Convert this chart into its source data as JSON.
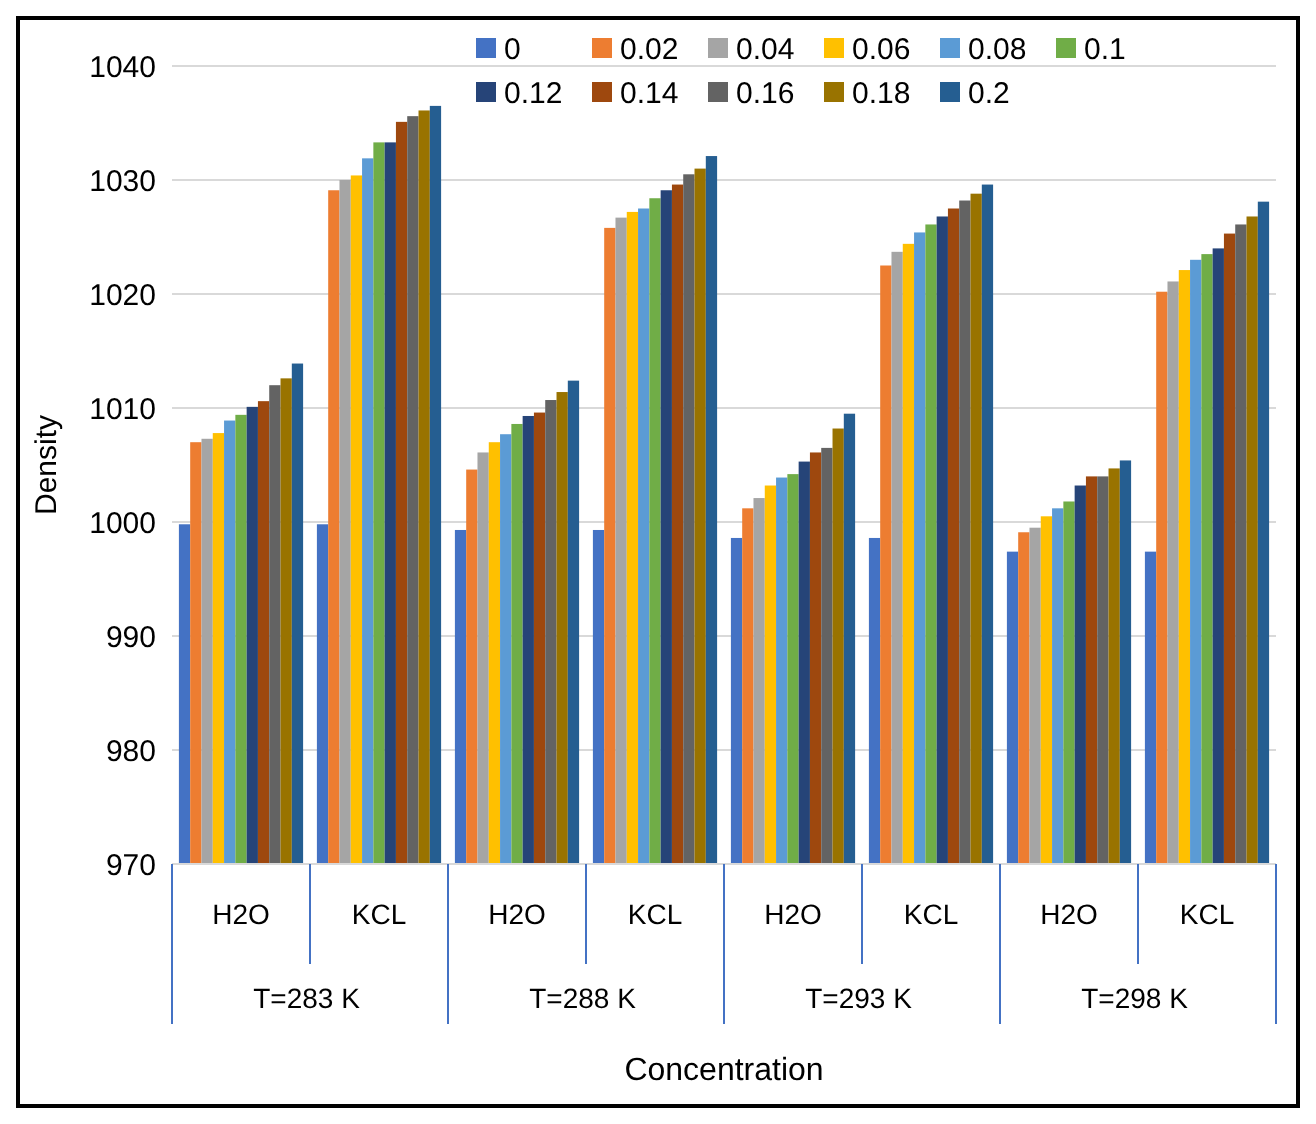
{
  "chart_data": {
    "type": "bar",
    "xlabel": "Concentration",
    "ylabel": "Density",
    "categories": [
      "H2O",
      "KCL",
      "H2O",
      "KCL",
      "H2O",
      "KCL",
      "H2O",
      "KCL"
    ],
    "annotations": [
      "T=283 K",
      "T=288 K",
      "T=293 K",
      "T=298 K"
    ],
    "ylim": [
      970,
      1040
    ],
    "yticks": [
      970,
      980,
      990,
      1000,
      1010,
      1020,
      1030,
      1040
    ],
    "grid": "y",
    "legend": "top",
    "series": [
      {
        "name": "0",
        "color": "#4472c4",
        "values": [
          999.8,
          999.8,
          999.3,
          999.3,
          998.6,
          998.6,
          997.4,
          997.4
        ]
      },
      {
        "name": "0.02",
        "color": "#ed7d31",
        "values": [
          1007.0,
          1029.1,
          1004.6,
          1025.8,
          1001.2,
          1022.5,
          999.1,
          1020.2
        ]
      },
      {
        "name": "0.04",
        "color": "#a5a5a5",
        "values": [
          1007.3,
          1030.0,
          1006.1,
          1026.7,
          1002.1,
          1023.7,
          999.5,
          1021.1
        ]
      },
      {
        "name": "0.06",
        "color": "#ffc000",
        "values": [
          1007.8,
          1030.4,
          1007.0,
          1027.2,
          1003.2,
          1024.4,
          1000.5,
          1022.1
        ]
      },
      {
        "name": "0.08",
        "color": "#5b9bd5",
        "values": [
          1008.9,
          1031.9,
          1007.7,
          1027.5,
          1003.9,
          1025.4,
          1001.2,
          1023.0
        ]
      },
      {
        "name": "0.1",
        "color": "#70ad47",
        "values": [
          1009.4,
          1033.3,
          1008.6,
          1028.4,
          1004.2,
          1026.1,
          1001.8,
          1023.5
        ]
      },
      {
        "name": "0.12",
        "color": "#264478",
        "values": [
          1010.1,
          1033.3,
          1009.3,
          1029.1,
          1005.3,
          1026.8,
          1003.2,
          1024.0
        ]
      },
      {
        "name": "0.14",
        "color": "#9e480e",
        "values": [
          1010.6,
          1035.1,
          1009.6,
          1029.6,
          1006.1,
          1027.5,
          1004.0,
          1025.3
        ]
      },
      {
        "name": "0.16",
        "color": "#636363",
        "values": [
          1012.0,
          1035.6,
          1010.7,
          1030.5,
          1006.5,
          1028.2,
          1004.0,
          1026.1
        ]
      },
      {
        "name": "0.18",
        "color": "#997300",
        "values": [
          1012.6,
          1036.1,
          1011.4,
          1031.0,
          1008.2,
          1028.8,
          1004.7,
          1026.8
        ]
      },
      {
        "name": "0.2",
        "color": "#255e91",
        "values": [
          1013.9,
          1036.5,
          1012.4,
          1032.1,
          1009.5,
          1029.6,
          1005.4,
          1028.1
        ]
      }
    ]
  }
}
